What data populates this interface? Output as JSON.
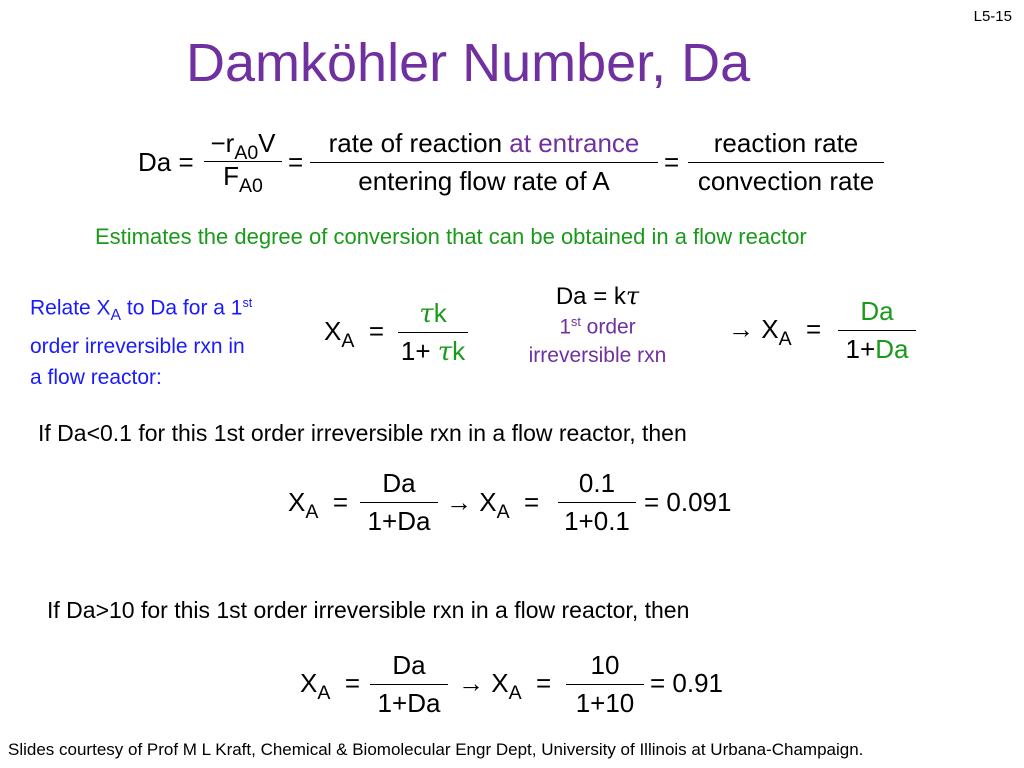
{
  "slide_number": "L5-15",
  "title": "Damköhler Number, Da",
  "definition": {
    "lhs": "Da",
    "eq": "=",
    "f1_num_minus": "−r",
    "f1_num_sub": "A0",
    "f1_num_v": "V",
    "f1_den": "F",
    "f1_den_sub": "A0",
    "f2_num_black": "rate of reaction ",
    "f2_num_purple": "at entrance",
    "f2_den": "entering flow rate of A",
    "f3_num": "reaction rate",
    "f3_den": "convection rate"
  },
  "note": "Estimates the degree of conversion that can be obtained in a flow reactor",
  "relate": {
    "line1_a": "Relate X",
    "line1_sub": "A",
    "line1_b": " to Da for a 1",
    "line1_sup": "st",
    "line2": "order irreversible rxn in",
    "line3": "a flow reactor:"
  },
  "xa_tau": {
    "x": "X",
    "sub": "A",
    "eq": "=",
    "num_tau": "τ",
    "num_k": "k",
    "den_one": "1+ ",
    "den_tau": "τ",
    "den_k": "k"
  },
  "da_kt": {
    "eq": "Da = k",
    "tau": "τ",
    "order_1": "1",
    "order_sup": "st",
    "order_rest": " order",
    "irrev": "irreversible rxn"
  },
  "xa_da": {
    "arrow": "→ X",
    "sub": "A",
    "eq": "=",
    "num": "Da",
    "den_one": "1+",
    "den_da": "Da"
  },
  "case1": {
    "text": "If Da<0.1 for this 1st order irreversible rxn in a flow reactor, then",
    "x": "X",
    "sub": "A",
    "eq": "=",
    "num1": "Da",
    "den1": "1+Da",
    "arrow": "→ X",
    "num2": "0.1",
    "den2": "1+0.1",
    "result": "= 0.091"
  },
  "case2": {
    "text": "If Da>10 for this 1st order irreversible rxn in a flow reactor, then",
    "x": "X",
    "sub": "A",
    "eq": "=",
    "num1": "Da",
    "den1": "1+Da",
    "arrow": "→ X",
    "num2": "10",
    "den2": "1+10",
    "result": "= 0.91"
  },
  "footer": "Slides courtesy of Prof M L Kraft, Chemical & Biomolecular Engr Dept, University of Illinois at Urbana-Champaign."
}
